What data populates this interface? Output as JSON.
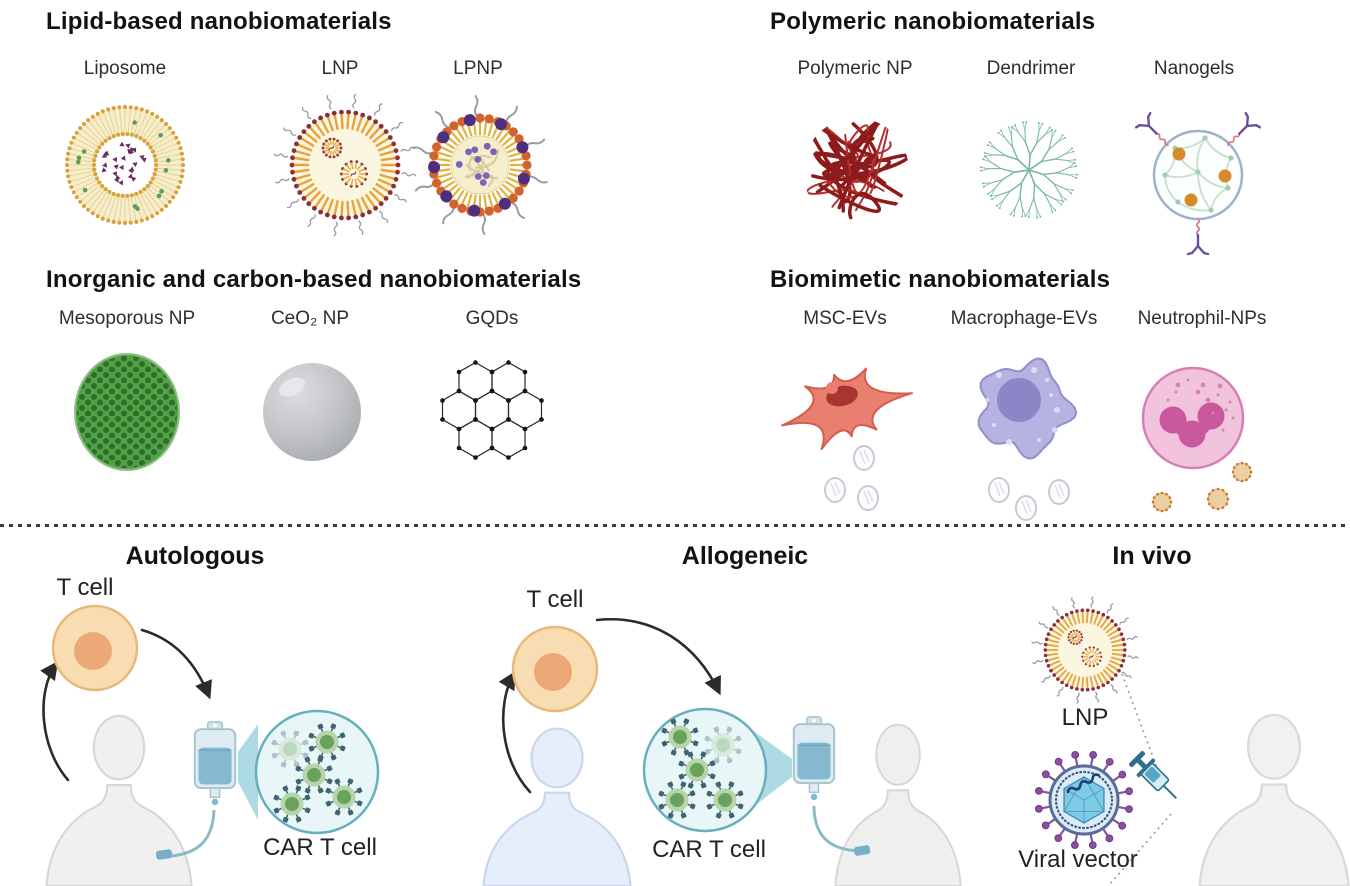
{
  "sections": [
    {
      "id": "lipid",
      "title": "Lipid-based nanobiomaterials",
      "items": [
        "Liposome",
        "LNP",
        "LPNP"
      ]
    },
    {
      "id": "polymeric",
      "title": "Polymeric nanobiomaterials",
      "items": [
        "Polymeric NP",
        "Dendrimer",
        "Nanogels"
      ]
    },
    {
      "id": "inorganic",
      "title": "Inorganic and carbon-based nanobiomaterials",
      "items": [
        "Mesoporous NP",
        "CeO₂ NP",
        "GQDs"
      ]
    },
    {
      "id": "biomimetic",
      "title": "Biomimetic nanobiomaterials",
      "items": [
        "MSC-EVs",
        "Macrophage-EVs",
        "Neutrophil-NPs"
      ]
    }
  ],
  "therapies": {
    "autologous": {
      "title": "Autologous",
      "t_cell": "T cell",
      "car_t_cell": "CAR T cell"
    },
    "allogeneic": {
      "title": "Allogeneic",
      "t_cell": "T cell",
      "car_t_cell": "CAR T cell"
    },
    "in_vivo": {
      "title": "In vivo",
      "lnp": "LNP",
      "viral_vector": "Viral vector"
    }
  },
  "colors": {
    "lipid_gold": "#d8a33c",
    "lnp_tail_orange": "#e8a33d",
    "lnp_bead_red": "#8c2f3a",
    "lpnp_orange": "#d2622e",
    "lpnp_purple": "#4f2d7f",
    "polymer_red": "#8e1b1b",
    "dendrimer_teal": "#79b7a9",
    "nanogel_orange": "#d98a2b",
    "antibody_purple": "#6b4f9e",
    "mesoporous_green": "#53a147",
    "ceo2_gray": "#c2c4c7",
    "msc_red": "#e97f6f",
    "macrophage_purple": "#b6b3e2",
    "neutrophil_pink": "#f2c3dc",
    "t_cell_peach": "#f8dcb2",
    "car_t_green": "#68a25c",
    "receptor_slate": "#3e6470",
    "iv_teal": "#85b9cf",
    "viral_purple": "#8c4fa0",
    "divider_gray": "#3c3c3c"
  }
}
